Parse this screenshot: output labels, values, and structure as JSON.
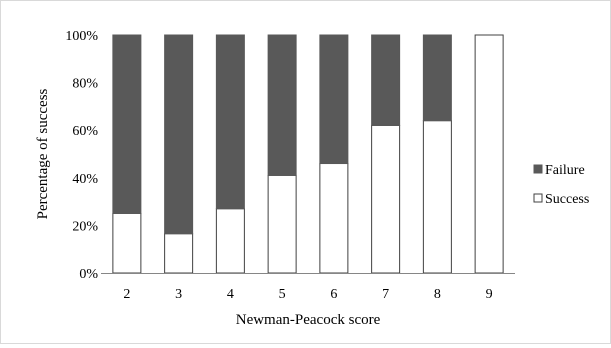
{
  "chart_data": {
    "type": "bar",
    "stacked": true,
    "stack_mode": "percent",
    "categories": [
      "2",
      "3",
      "4",
      "5",
      "6",
      "7",
      "8",
      "9"
    ],
    "series": [
      {
        "name": "Success",
        "values": [
          25,
          16.5,
          27,
          41,
          46,
          62,
          64,
          100
        ],
        "color": "#ffffff"
      },
      {
        "name": "Failure",
        "values": [
          75,
          83.5,
          73,
          59,
          54,
          38,
          36,
          0
        ],
        "color": "#595959"
      }
    ],
    "xlabel": "Newman-Peacock score",
    "ylabel": "Percentage of success",
    "ylim": [
      0,
      100
    ],
    "yticks": [
      "0%",
      "20%",
      "40%",
      "60%",
      "80%",
      "100%"
    ],
    "grid": false,
    "legend_position": "right"
  }
}
